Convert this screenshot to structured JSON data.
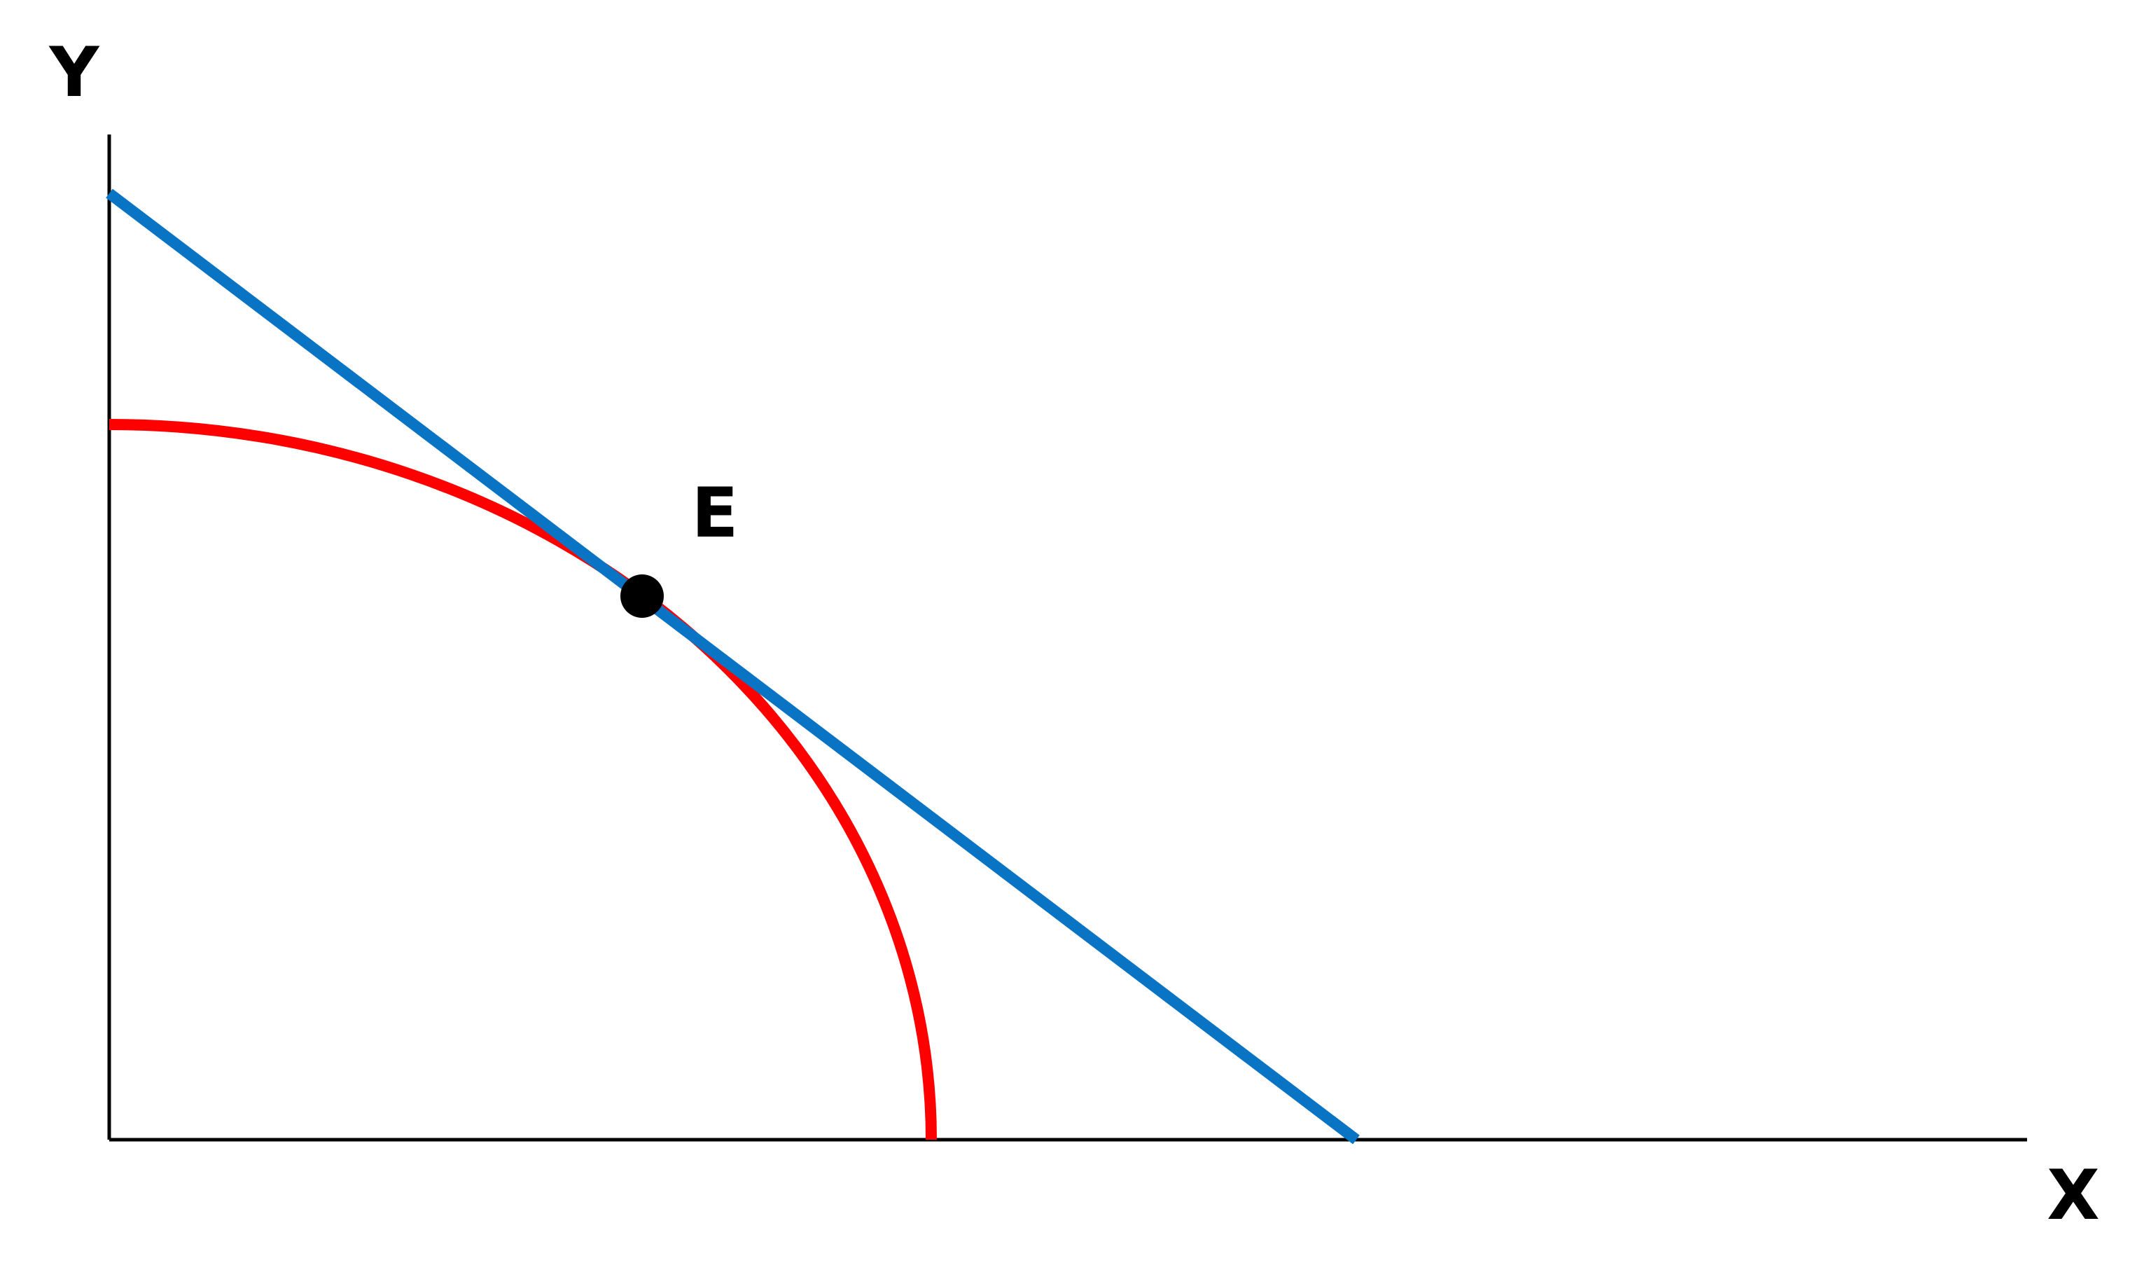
{
  "labels": {
    "y_axis": "Y",
    "x_axis": "X",
    "point": "E"
  }
}
